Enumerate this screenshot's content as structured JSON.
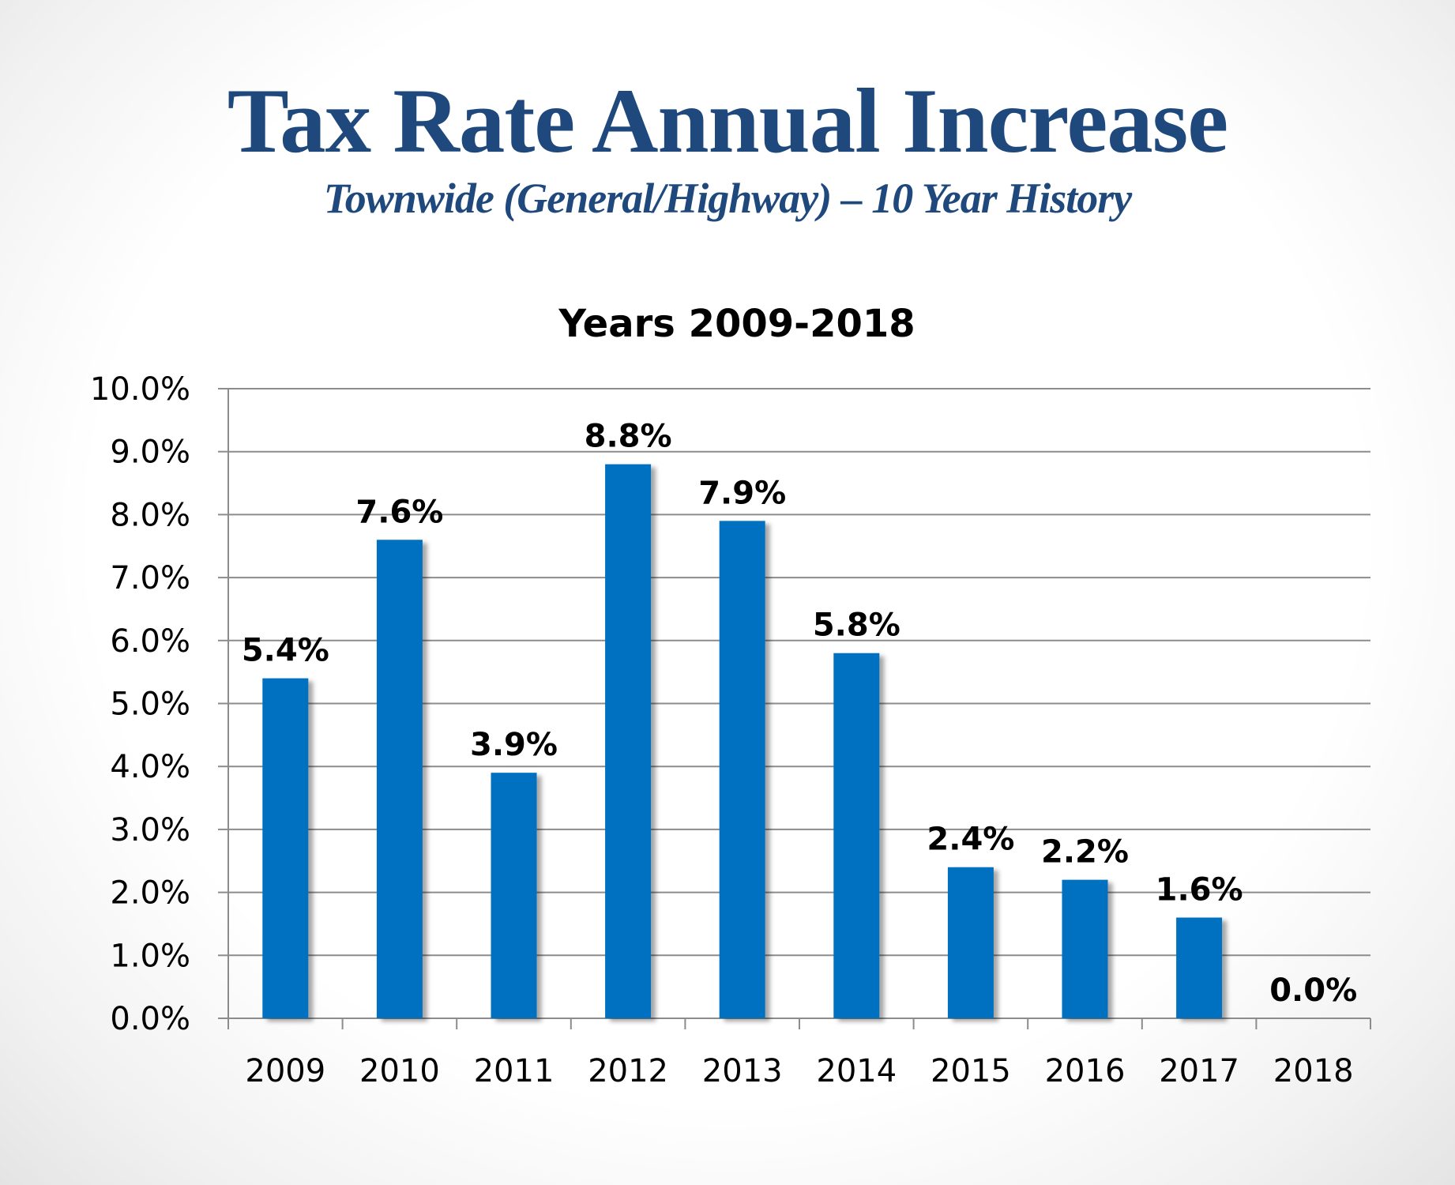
{
  "slide": {
    "title": "Tax Rate Annual Increase",
    "subtitle": "Townwide (General/Highway) – 10 Year History"
  },
  "colors": {
    "title": "#1f497d",
    "bar": "#0070c0",
    "grid": "#8c8c8c"
  },
  "chart_data": {
    "type": "bar",
    "title": "Years 2009-2018",
    "xlabel": "",
    "ylabel": "",
    "categories": [
      "2009",
      "2010",
      "2011",
      "2012",
      "2013",
      "2014",
      "2015",
      "2016",
      "2017",
      "2018"
    ],
    "values": [
      5.4,
      7.6,
      3.9,
      8.8,
      7.9,
      5.8,
      2.4,
      2.2,
      1.6,
      0.0
    ],
    "value_labels": [
      "5.4%",
      "7.6%",
      "3.9%",
      "8.8%",
      "7.9%",
      "5.8%",
      "2.4%",
      "2.2%",
      "1.6%",
      "0.0%"
    ],
    "ylim": [
      0,
      10
    ],
    "yticks": [
      "0.0%",
      "1.0%",
      "2.0%",
      "3.0%",
      "4.0%",
      "5.0%",
      "6.0%",
      "7.0%",
      "8.0%",
      "9.0%",
      "10.0%"
    ],
    "grid": true,
    "legend": "none"
  }
}
